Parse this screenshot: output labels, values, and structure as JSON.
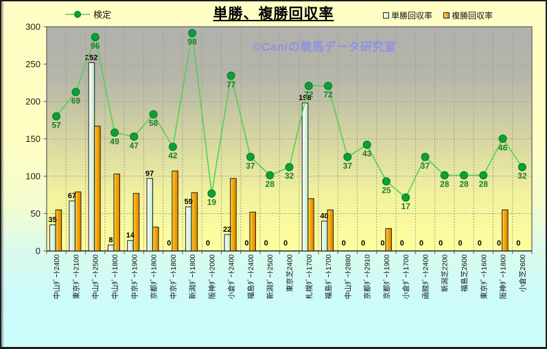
{
  "title": {
    "text": "単勝、複勝回収率"
  },
  "watermark": {
    "text": "©Caniの競馬データ研究室",
    "color": "#8b8de5"
  },
  "legend": {
    "kentei_label": "検定",
    "tansho_label": "単勝回収率",
    "fukusho_label": "複勝回収率",
    "position": "top"
  },
  "y_axis": {
    "min": 0,
    "max": 300,
    "ticks": [
      300,
      250,
      200,
      150,
      100,
      50,
      0
    ]
  },
  "chart_data": {
    "type": "bar",
    "subtype": "grouped bars + line overlay",
    "title": "単勝、複勝回収率",
    "categories": [
      "中山ﾀﾞｰﾄ2400",
      "東京ﾀﾞｰﾄ2100",
      "中山ﾀﾞｰﾄ2500",
      "中山ﾀﾞｰﾄ1800",
      "中京ﾀﾞｰﾄ1900",
      "京都ﾀﾞｰﾄ1800",
      "中京ﾀﾞｰﾄ1800",
      "新潟ﾀﾞｰﾄ1800",
      "阪神ﾀﾞｰﾄ2000",
      "小倉ﾀﾞｰﾄ2400",
      "福島ﾀﾞｰﾄ2400",
      "新潟ﾀﾞｰﾄ2500",
      "東京芝2400",
      "札幌ﾀﾞｰﾄ1700",
      "福島ﾀﾞｰﾄ1700",
      "中山ﾀﾞｰﾄ2880",
      "京都ﾀﾞｰﾄ2910",
      "京都ﾀﾞｰﾄ1900",
      "小倉ﾀﾞｰﾄ1700",
      "函館ﾀﾞｰﾄ2400",
      "新潟芝2200",
      "福島芝2600",
      "東京ﾀﾞｰﾄ1600",
      "阪神ﾀﾞｰﾄ1800",
      "小倉芝2600"
    ],
    "series": [
      {
        "name": "単勝回収率",
        "type": "bar",
        "data_labels_shown": true,
        "values": [
          35,
          67,
          252,
          8,
          14,
          97,
          0,
          59,
          0,
          22,
          0,
          0,
          0,
          198,
          40,
          0,
          0,
          0,
          0,
          0,
          0,
          0,
          0,
          0,
          0
        ]
      },
      {
        "name": "複勝回収率",
        "type": "bar",
        "data_labels_shown": false,
        "values": [
          55,
          79,
          167,
          103,
          77,
          32,
          107,
          78,
          0,
          97,
          52,
          0,
          0,
          70,
          55,
          0,
          0,
          30,
          0,
          0,
          0,
          0,
          0,
          55,
          0
        ]
      },
      {
        "name": "検定",
        "type": "line",
        "data_labels_shown": true,
        "values": [
          57,
          69,
          96,
          49,
          47,
          58,
          42,
          98,
          19,
          77,
          37,
          28,
          32,
          72,
          72,
          37,
          43,
          25,
          17,
          37,
          28,
          28,
          28,
          46,
          32
        ],
        "axis": "hidden secondary axis (approx -10 to 101)"
      }
    ],
    "ylim": [
      0,
      300
    ],
    "yticks": [
      0,
      50,
      100,
      150,
      200,
      250,
      300
    ],
    "grid": true,
    "legend_position": "top"
  },
  "colors": {
    "background_top": "#ffffc5",
    "background_bottom": "#ccfcfc",
    "plot_top": "#b1b1ae",
    "plot_bottom": "#ffff9e",
    "tansho_bar_light": "#ffffff",
    "tansho_bar_dark": "#b9e7c9",
    "fukusho_bar_light": "#ffd75e",
    "fukusho_bar_dark": "#dd8500",
    "line": "#52d052",
    "marker_fill": "#0ba138",
    "marker_edge": "#0a7a28",
    "kentei_label": "#1b7e24",
    "bar_label": "#000000",
    "grid": "#9d9d8f"
  }
}
